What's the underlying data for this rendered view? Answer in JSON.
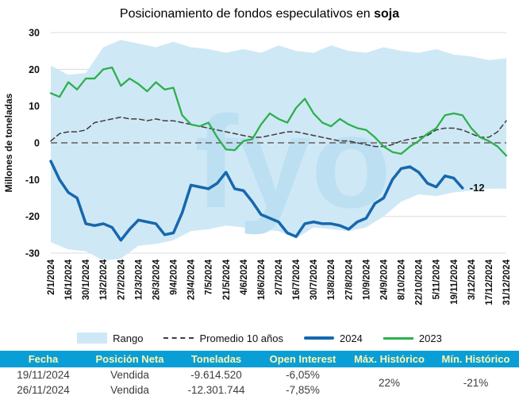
{
  "title": {
    "prefix": "Posicionamiento de fondos especulativos en ",
    "emphasis": "soja"
  },
  "chart_data": {
    "type": "line",
    "title": "Posicionamiento de fondos especulativos en soja",
    "ylabel": "Millones de toneladas",
    "ylim": [
      -30,
      30
    ],
    "yticks": [
      -30,
      -20,
      -10,
      0,
      10,
      20,
      30
    ],
    "watermark": "fyo",
    "x_note": "weekly index, 0 = 2/1/2024, 52 = 31/12/2024",
    "x_tick_positions": [
      0,
      2,
      4,
      6,
      8,
      10,
      12,
      14,
      16,
      18,
      20,
      22,
      24,
      26,
      28,
      30,
      32,
      34,
      36,
      38,
      40,
      42,
      44,
      46,
      48,
      50,
      52
    ],
    "x_tick_labels": [
      "2/1/2024",
      "16/1/2024",
      "30/1/2024",
      "13/2/2024",
      "27/2/2024",
      "12/3/2024",
      "26/3/2024",
      "9/4/2024",
      "23/4/2024",
      "7/5/2024",
      "21/5/2024",
      "4/6/2024",
      "18/6/2024",
      "2/7/2024",
      "16/7/2024",
      "30/7/2024",
      "13/8/2024",
      "27/8/2024",
      "10/9/2024",
      "24/9/2024",
      "8/10/2024",
      "22/10/2024",
      "5/11/2024",
      "19/11/2024",
      "3/12/2024",
      "17/12/2024",
      "31/12/2024"
    ],
    "band": {
      "name": "Rango",
      "color": "#cfe8f6",
      "x": [
        0,
        2,
        4,
        6,
        8,
        10,
        12,
        14,
        16,
        18,
        20,
        22,
        24,
        26,
        28,
        30,
        32,
        34,
        36,
        38,
        40,
        42,
        44,
        46,
        48,
        50,
        52
      ],
      "upper": [
        21,
        18.5,
        19,
        26,
        28,
        27,
        26,
        27.5,
        26,
        25.5,
        24.5,
        25.5,
        24.5,
        26.5,
        25,
        24.5,
        26.5,
        25,
        24.5,
        26,
        25,
        24.5,
        25.5,
        24,
        23.5,
        22.5,
        23
      ],
      "lower": [
        -27,
        -29,
        -29.5,
        -32,
        -31.5,
        -28,
        -27.5,
        -26.5,
        -24,
        -23.5,
        -22.5,
        -23,
        -23.5,
        -24,
        -26,
        -23,
        -23.5,
        -24,
        -23,
        -20,
        -16,
        -14,
        -14.5,
        -13.5,
        -13,
        -12.5,
        -12.5
      ]
    },
    "series": [
      {
        "name": "Promedio 10 años",
        "color": "#3d3d3d",
        "width": 1.5,
        "dash": "6 4",
        "values": [
          0.5,
          2.5,
          3,
          3,
          3.5,
          5.5,
          6,
          6.5,
          7,
          6.5,
          6.5,
          6,
          6.5,
          6,
          6,
          5.5,
          5,
          4.5,
          4,
          3.5,
          3,
          2.5,
          2,
          1.5,
          1.5,
          2,
          2.5,
          3,
          3,
          2.5,
          2,
          1.5,
          1,
          0.5,
          0.5,
          0,
          -0.5,
          -1,
          -1,
          -0.5,
          0.5,
          1,
          1.5,
          2,
          3.5,
          4,
          4,
          3.5,
          2.5,
          1.5,
          1.5,
          3,
          6
        ]
      },
      {
        "name": "2023",
        "color": "#2eb04c",
        "width": 2.3,
        "values": [
          13.5,
          12.5,
          16.5,
          14.5,
          17.5,
          17.5,
          20,
          20.5,
          15.5,
          17.5,
          16,
          14,
          16.5,
          14.5,
          15,
          7.5,
          5,
          4.5,
          5.5,
          1.5,
          -1.8,
          -2,
          0.5,
          1,
          5,
          8,
          6.5,
          5.5,
          9.5,
          12,
          8,
          5.5,
          4.5,
          6.5,
          5,
          4,
          3.5,
          1.5,
          -1,
          -2.5,
          -3,
          -1,
          0.5,
          2.5,
          4,
          7.5,
          8,
          7.5,
          4,
          1.5,
          0.5,
          -1,
          -3.5
        ]
      },
      {
        "name": "2024",
        "color": "#1767ad",
        "width": 3.5,
        "values": [
          -5,
          -10,
          -13.5,
          -15,
          -22,
          -22.5,
          -22,
          -23,
          -26.5,
          -23.5,
          -21,
          -21.5,
          -22,
          -25,
          -24.5,
          -19,
          -11.5,
          -12,
          -12.5,
          -11,
          -8,
          -12.5,
          -13,
          -16,
          -19.5,
          -20.5,
          -21.5,
          -24.5,
          -25.5,
          -22,
          -21.5,
          -22,
          -22,
          -22.5,
          -23.5,
          -21.5,
          -20.5,
          -16.5,
          -15,
          -10,
          -7,
          -6.5,
          -8,
          -11,
          -12,
          -9,
          -9.6,
          -12.3
        ]
      }
    ],
    "annotation": {
      "text": "-12",
      "x": 47,
      "y": -12.3
    },
    "colors": {
      "grid": "#dcdcdc",
      "zero_line": "#808080",
      "watermark": "#bcdff2",
      "axis_text": "#111111",
      "band": "#cfe8f6",
      "line_2024": "#1767ad",
      "line_2023": "#2eb04c",
      "header_bg": "#0a9ed6",
      "header_text": "#fdf6ae"
    },
    "legend_position": "bottom"
  },
  "legend": {
    "range": "Rango",
    "average": "Promedio 10 años",
    "y2024": "2024",
    "y2023": "2023"
  },
  "table": {
    "headers": [
      "Fecha",
      "Posición Neta",
      "Toneladas",
      "Open Interest",
      "Máx. Histórico",
      "Mín. Histórico"
    ],
    "rows": [
      {
        "fecha": "19/11/2024",
        "posicion": "Vendida",
        "toneladas": "-9.614.520",
        "open_interest": "-6,05%"
      },
      {
        "fecha": "26/11/2024",
        "posicion": "Vendida",
        "toneladas": "-12.301.744",
        "open_interest": "-7,85%"
      }
    ],
    "max_historico": "22%",
    "min_historico": "-21%"
  }
}
